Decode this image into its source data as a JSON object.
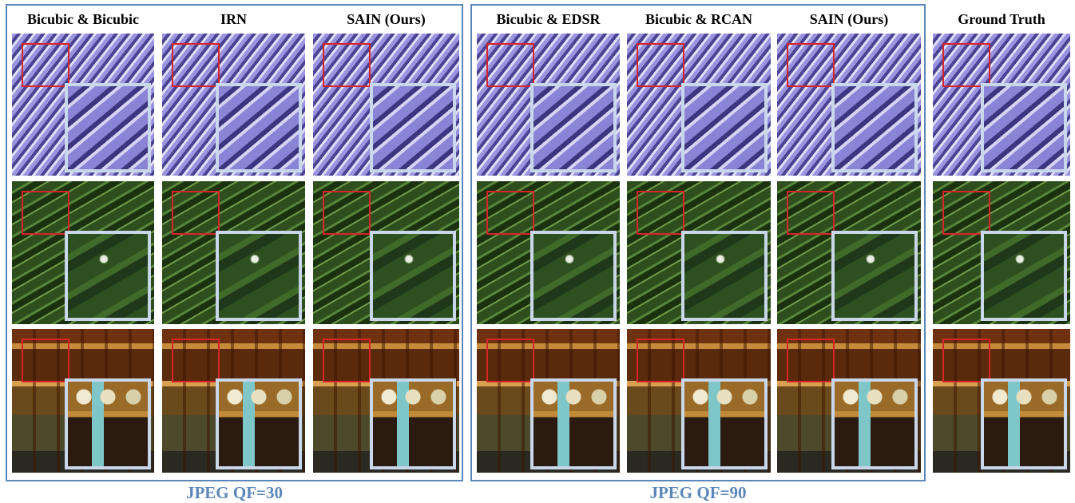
{
  "groups": [
    {
      "label": "JPEG QF=30",
      "columns": [
        "Bicubic & Bicubic",
        "IRN",
        "SAIN (Ours)"
      ]
    },
    {
      "label": "JPEG QF=90",
      "columns": [
        "Bicubic & EDSR",
        "Bicubic & RCAN",
        "SAIN (Ours)"
      ]
    }
  ],
  "reference_column": "Ground Truth"
}
